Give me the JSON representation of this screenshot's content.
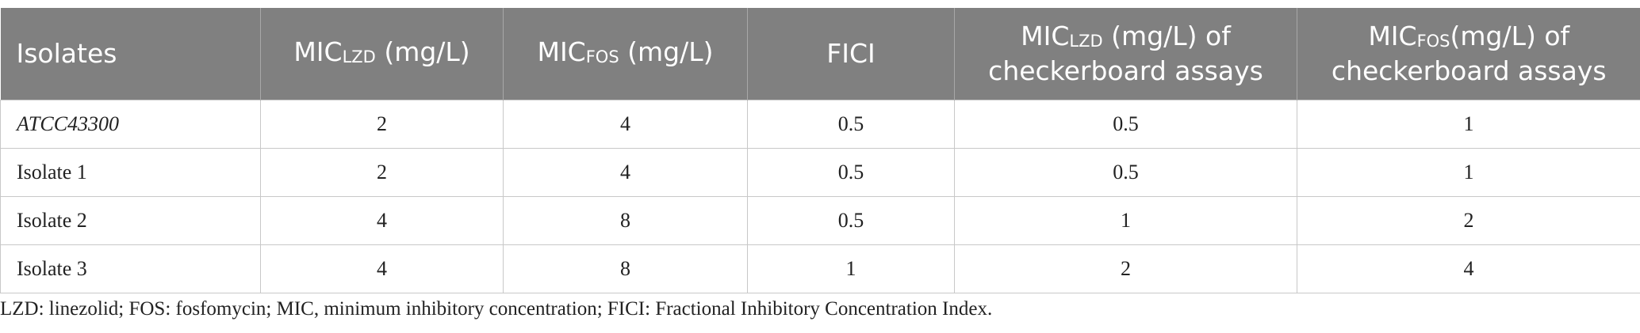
{
  "table": {
    "header": [
      {
        "main": "Isolates"
      },
      {
        "main": "MIC",
        "sub": "LZD",
        "rest": " (mg/L)"
      },
      {
        "main": "MIC",
        "sub": "FOS",
        "rest": " (mg/L)"
      },
      {
        "main": "FICI"
      },
      {
        "main": "MIC",
        "sub": "LZD",
        "rest": " (mg/L) of checkerboard assays"
      },
      {
        "main": "MIC",
        "sub": "FOS",
        "rest": "(mg/L) of checkerboard assays"
      }
    ],
    "rows": [
      [
        "ATCC43300",
        2,
        4,
        0.5,
        0.5,
        1
      ],
      [
        "Isolate 1",
        2,
        4,
        0.5,
        0.5,
        1
      ],
      [
        "Isolate 2",
        4,
        8,
        0.5,
        1,
        2
      ],
      [
        "Isolate 3",
        4,
        8,
        1,
        2,
        4
      ]
    ]
  },
  "footnote": "LZD: linezolid; FOS: fosfomycin; MIC, minimum inhibitory concentration; FICI: Fractional Inhibitory Concentration Index."
}
